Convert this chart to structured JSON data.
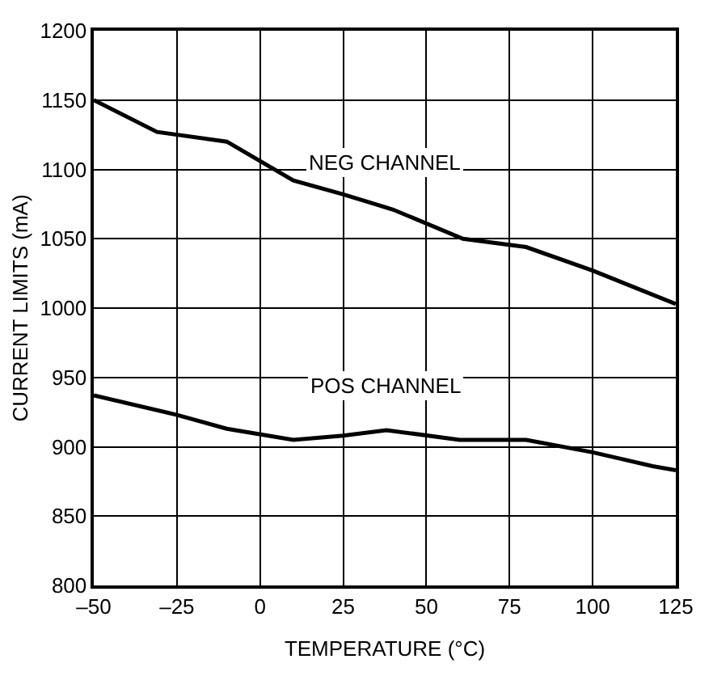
{
  "chart_data": {
    "type": "line",
    "xlabel": "TEMPERATURE (°C)",
    "ylabel": "CURRENT LIMITS (mA)",
    "xlim": [
      -50,
      125
    ],
    "xticks": [
      {
        "value": -50,
        "label": "–50"
      },
      {
        "value": -25,
        "label": "–25"
      },
      0,
      25,
      50,
      75,
      100,
      125
    ],
    "ylim": [
      800,
      1200
    ],
    "yticks": [
      800,
      850,
      900,
      950,
      1000,
      1050,
      1100,
      1150,
      1200
    ],
    "grid": true,
    "marker": "none",
    "line_style": "solid",
    "series": [
      {
        "color": "#000000",
        "x": [
          -50,
          -31,
          -10,
          10,
          25,
          40,
          61,
          80,
          100,
          125
        ],
        "values": [
          1150,
          1127,
          1120,
          1092,
          1082,
          1071,
          1050,
          1044,
          1027,
          1003
        ]
      },
      {
        "color": "#000000",
        "x": [
          -50,
          -25,
          -10,
          10,
          25,
          38,
          60,
          80,
          100,
          118,
          125
        ],
        "values": [
          937,
          923,
          913,
          905,
          908,
          912,
          905,
          905,
          896,
          886,
          883
        ]
      }
    ],
    "annotations": [
      "NEG CHANNEL",
      "POS CHANNEL"
    ]
  }
}
